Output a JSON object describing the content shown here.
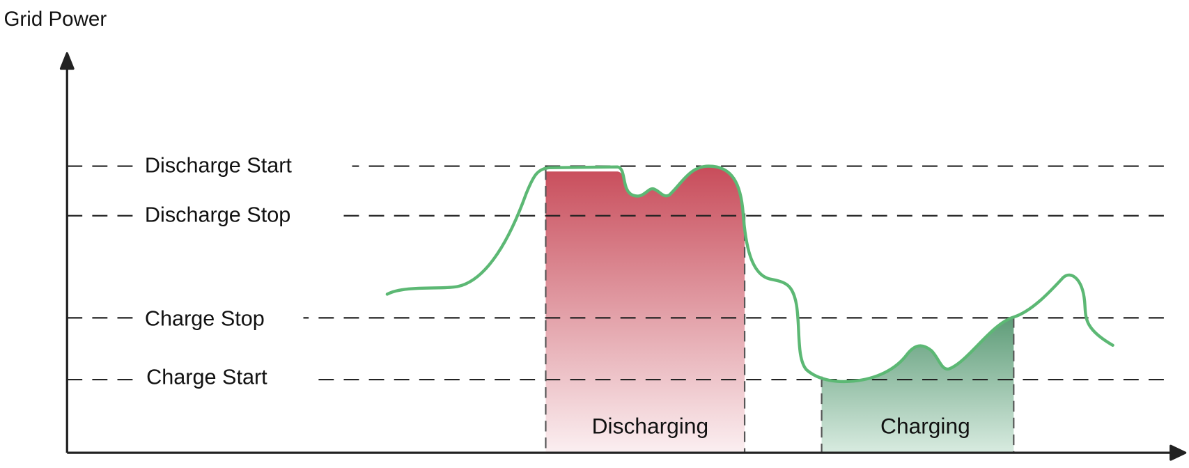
{
  "y_axis_label": "Grid Power",
  "thresholds": [
    {
      "label": "Discharge Start"
    },
    {
      "label": "Discharge Stop"
    },
    {
      "label": "Charge Stop"
    },
    {
      "label": "Charge Start"
    }
  ],
  "regions": {
    "discharging": {
      "label": "Discharging",
      "color_top": "#c84c5a",
      "color_bottom": "#fbeff1"
    },
    "charging": {
      "label": "Charging",
      "color_top": "#5e9c78",
      "color_bottom": "#d8ebe0"
    }
  },
  "colors": {
    "curve": "#5cb874",
    "axis": "#222222",
    "dashed": "#222222"
  }
}
